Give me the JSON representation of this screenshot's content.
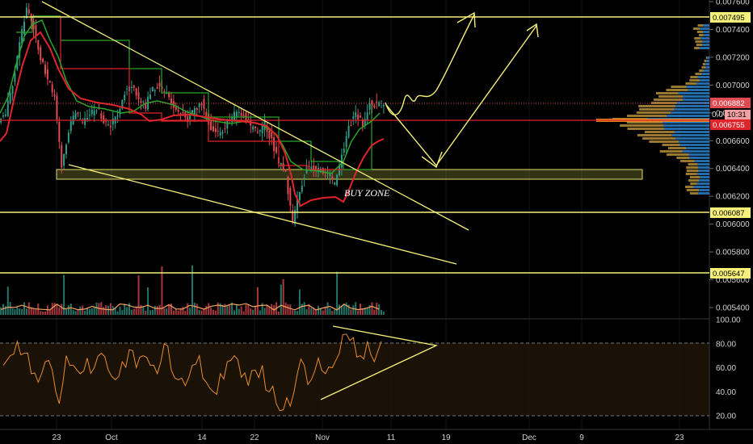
{
  "colors": {
    "background": "#000000",
    "up_candle": "#2e9e8a",
    "down_candle": "#e04b52",
    "yellow_lines": "#f5f07a",
    "red_line": "#e0242c",
    "green_line": "#2aa52a",
    "ma_line": "#f4a460",
    "rsi_line": "#e98a2c",
    "rsi_band": "#1a1206",
    "vp_up": "#2a7fc8",
    "vp_down": "#c8a040"
  },
  "price_axis": {
    "ticks": [
      "0.007600",
      "0.007400",
      "0.007200",
      "0.007000",
      "0.006800",
      "0.006600",
      "0.006400",
      "0.006200",
      "0.006000",
      "0.005800",
      "0.005600",
      "0.005400"
    ],
    "ylim": [
      0.00532,
      0.00762
    ]
  },
  "rsi_axis": {
    "ticks": [
      "100.00",
      "80.00",
      "60.00",
      "40.00",
      "20.00"
    ],
    "ylim": [
      15,
      100
    ]
  },
  "badges": {
    "level_top": "0.007495",
    "current_price": "0.006882",
    "countdown_prefix": "0.0",
    "countdown": "10:31",
    "red_level": "0.006755",
    "level_mid": "0.006087",
    "level_low": "0.005647"
  },
  "time_axis": {
    "labels": [
      "23",
      "Oct",
      "14",
      "22",
      "Nov",
      "11",
      "19",
      "Dec",
      "9",
      "23"
    ]
  },
  "annotations": {
    "buy_zone": "BUY ZONE"
  },
  "chart_data": {
    "type": "candlestick",
    "horizontal_levels": [
      0.007495,
      0.006087,
      0.005647
    ],
    "red_level": 0.006755,
    "current_price": 0.006882,
    "buy_zone": {
      "low": 0.00633,
      "high": 0.00641
    },
    "close_series": [
      0.0068,
      0.007,
      0.0073,
      0.00755,
      0.00742,
      0.0072,
      0.00705,
      0.0069,
      0.0064,
      0.00668,
      0.0068,
      0.00672,
      0.00678,
      0.00684,
      0.00675,
      0.0067,
      0.0068,
      0.00695,
      0.007,
      0.0069,
      0.00685,
      0.00698,
      0.007,
      0.00692,
      0.00686,
      0.0068,
      0.00675,
      0.00682,
      0.00688,
      0.00672,
      0.00665,
      0.00668,
      0.00675,
      0.00681,
      0.00678,
      0.0067,
      0.00665,
      0.00672,
      0.0066,
      0.00645,
      0.00636,
      0.006,
      0.00625,
      0.0064,
      0.0064,
      0.00638,
      0.00636,
      0.00628,
      0.0065,
      0.0067,
      0.0068,
      0.00672,
      0.00688,
      0.00685,
      0.00688
    ],
    "rsi_series": [
      62,
      70,
      82,
      72,
      55,
      48,
      65,
      58,
      30,
      70,
      62,
      55,
      68,
      60,
      72,
      58,
      50,
      65,
      75,
      60,
      70,
      62,
      55,
      80,
      58,
      50,
      45,
      62,
      70,
      48,
      40,
      55,
      65,
      70,
      52,
      45,
      58,
      62,
      40,
      30,
      25,
      28,
      55,
      62,
      50,
      68,
      55,
      60,
      72,
      88,
      85,
      70,
      82,
      65,
      82
    ]
  }
}
